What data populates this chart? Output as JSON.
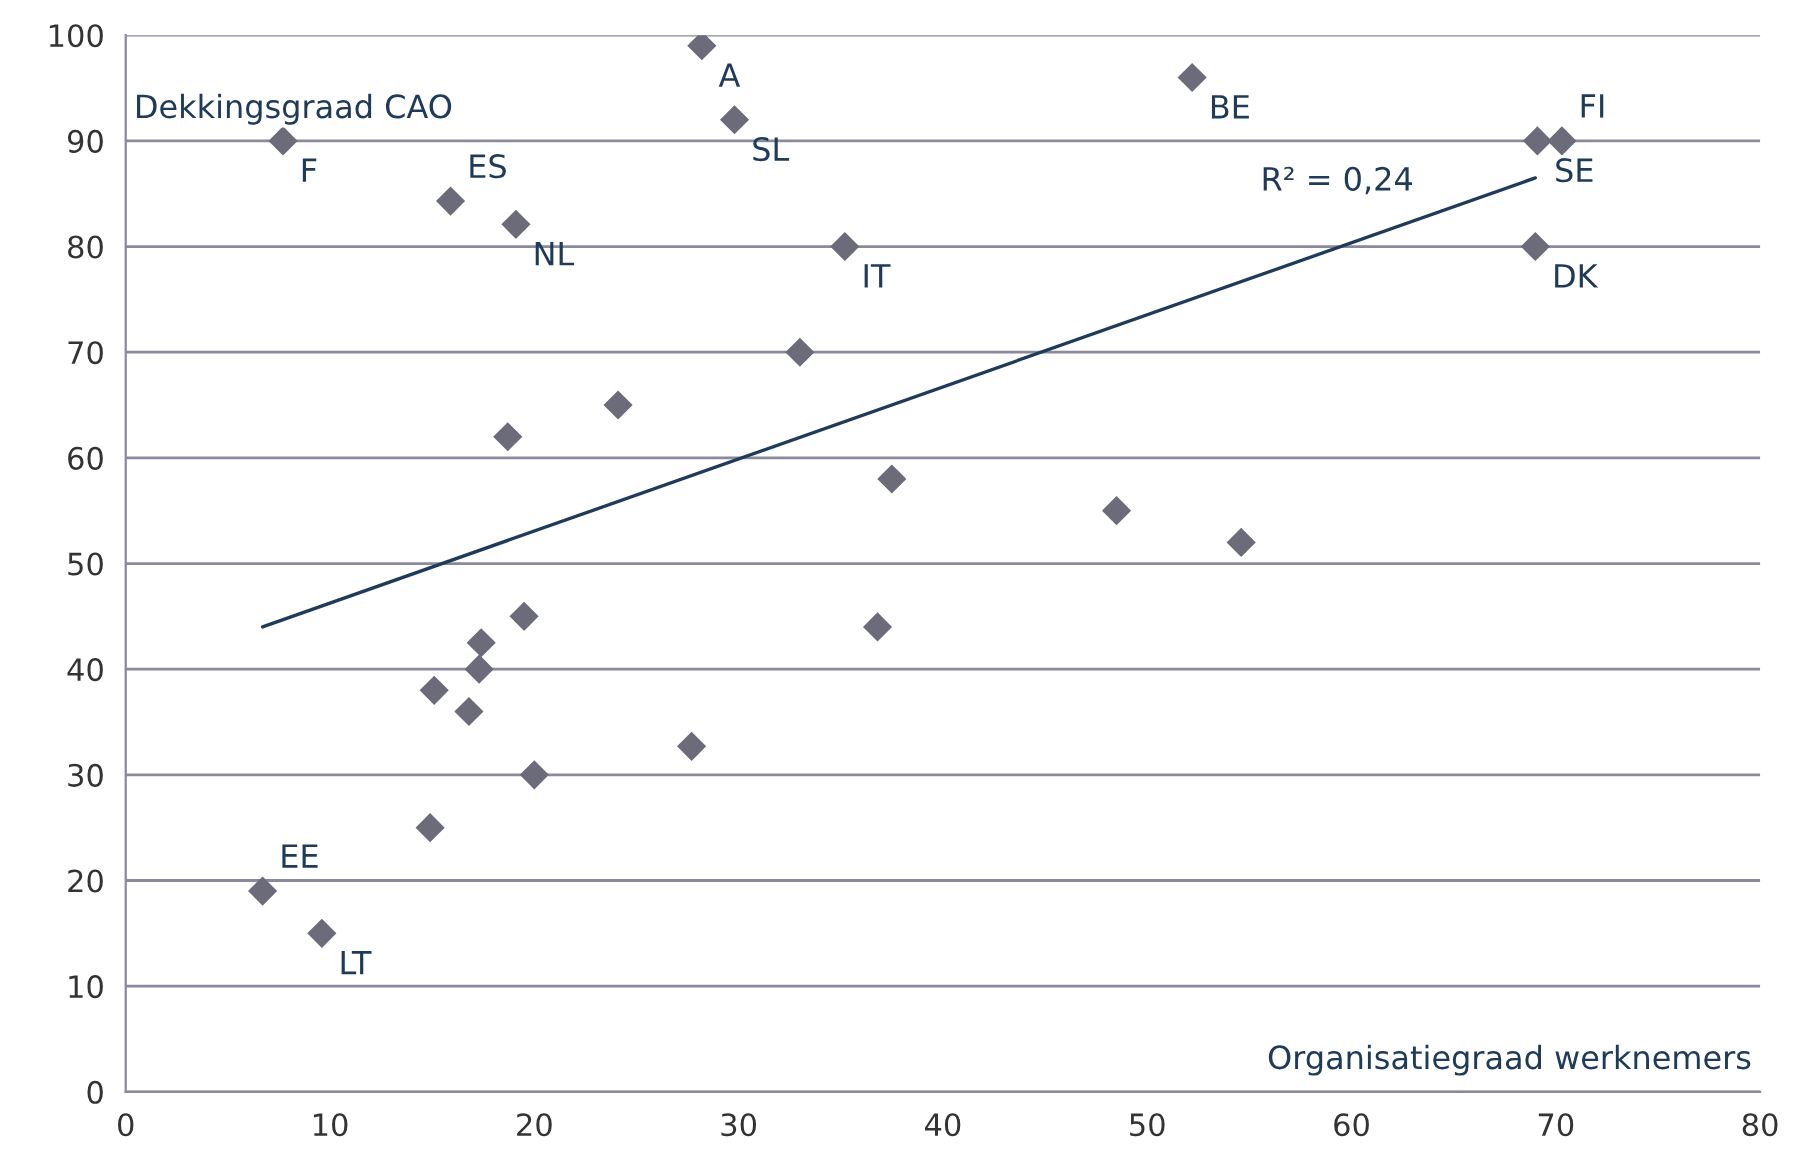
{
  "chart_data": {
    "type": "scatter",
    "ylabel": "Dekkingsgraad CAO",
    "xlabel": "Organisatiegraad werknemers",
    "xlim": [
      0,
      80
    ],
    "xticks": [
      0,
      10,
      20,
      30,
      40,
      50,
      60,
      70,
      80
    ],
    "ylim": [
      0,
      100
    ],
    "yticks": [
      0,
      10,
      20,
      30,
      40,
      50,
      60,
      70,
      80,
      90,
      100
    ],
    "grid": "y",
    "legend": false,
    "series": [
      {
        "marker": "diamond",
        "color": "#6b6b7a",
        "x": [
          28.2,
          29.8,
          7.7,
          52.2,
          69.1,
          70.3,
          69.0,
          15.9,
          19.1,
          35.2,
          33.0,
          24.1,
          18.7,
          37.5,
          48.5,
          54.6,
          19.5,
          36.8,
          17.4,
          17.3,
          15.1,
          16.8,
          27.7,
          20.0,
          14.9,
          6.7,
          9.6
        ],
        "values": [
          99,
          92,
          90,
          96,
          90,
          90,
          80,
          84.3,
          82.1,
          80,
          70,
          65,
          62,
          58,
          55,
          52,
          45,
          44,
          42.5,
          40,
          38,
          36,
          32.7,
          30,
          25,
          19,
          15
        ]
      },
      {
        "type": "line",
        "color": "#1f3b5a",
        "x": [
          6.7,
          69.0
        ],
        "values": [
          44,
          86.5
        ]
      }
    ],
    "annotations": [
      {
        "text": "A",
        "x": 28.2,
        "y": 99
      },
      {
        "text": "SL",
        "x": 29.8,
        "y": 92
      },
      {
        "text": "F",
        "x": 7.7,
        "y": 90
      },
      {
        "text": "BE",
        "x": 52.2,
        "y": 96
      },
      {
        "text": "SE",
        "x": 69.1,
        "y": 90
      },
      {
        "text": "FI",
        "x": 70.3,
        "y": 90
      },
      {
        "text": "DK",
        "x": 69.0,
        "y": 80
      },
      {
        "text": "ES",
        "x": 15.9,
        "y": 84.3
      },
      {
        "text": "NL",
        "x": 19.1,
        "y": 82.1
      },
      {
        "text": "IT",
        "x": 35.2,
        "y": 80
      },
      {
        "text": "EE",
        "x": 6.7,
        "y": 19
      },
      {
        "text": "LT",
        "x": 9.6,
        "y": 15
      },
      {
        "text": "R² = 0,24",
        "x": 64,
        "y": 83.1
      }
    ]
  }
}
